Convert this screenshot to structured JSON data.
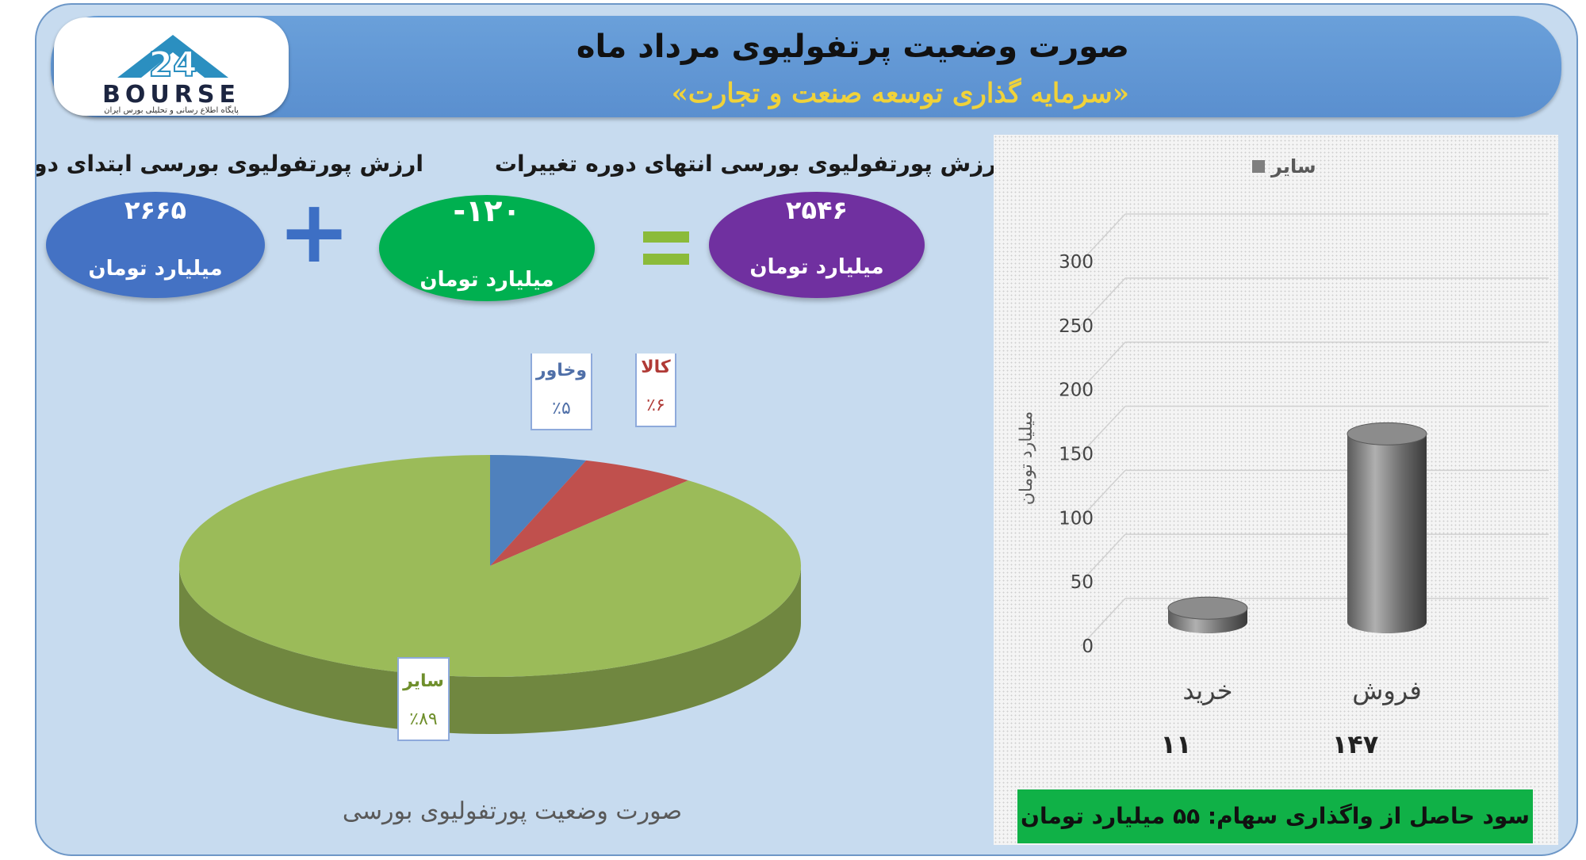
{
  "header": {
    "title": "صورت وضعیت پرتفولیوی مرداد ماه",
    "subtitle": "«سرمایه گذاری توسعه صنعت و تجارت»"
  },
  "logo": {
    "word": "BOURSE",
    "mark": "24",
    "caption": "پایگاه اطلاع رسانی و تحلیلی بورس ایران"
  },
  "summary": {
    "start": {
      "label": "ارزش پورتفولیوی بورسی ابتدای دوره",
      "value": "۲۶۶۵",
      "unit": "میلیارد تومان",
      "color": "#4472c4"
    },
    "change": {
      "label": "تغییرات",
      "value": "-۱۲۰",
      "unit": "میلیارد تومان",
      "color": "#00b050"
    },
    "end": {
      "label": "ارزش پورتفولیوی بورسی انتهای دوره",
      "value": "۲۵۴۶",
      "unit": "میلیارد تومان",
      "color": "#7030a0"
    },
    "plus_symbol": "+"
  },
  "savings": "سود حاصل از واگذاری سهام: ۵۵ میلیارد تومان",
  "chart_data": [
    {
      "type": "pie",
      "title": "صورت وضعیت پورتفولیوی بورسی",
      "slices": [
        {
          "label": "سایر",
          "value": 89,
          "value_label": "٪۸۹",
          "color": "#9bbb59"
        },
        {
          "label": "وخاور",
          "value": 5,
          "value_label": "٪۵",
          "color": "#4f81bd"
        },
        {
          "label": "کالا",
          "value": 6,
          "value_label": "٪۶",
          "color": "#c0504d"
        }
      ]
    },
    {
      "type": "bar",
      "legend": [
        "سایر"
      ],
      "legend_position": "top",
      "ylabel": "میلیارد تومان",
      "ylim": [
        0,
        300
      ],
      "yticks": [
        0,
        50,
        100,
        150,
        200,
        250,
        300
      ],
      "categories": [
        "فروش",
        "خرید"
      ],
      "values": [
        147,
        11
      ],
      "value_labels": [
        "۱۴۷",
        "۱۱"
      ],
      "color": "#7f7f7f"
    }
  ]
}
